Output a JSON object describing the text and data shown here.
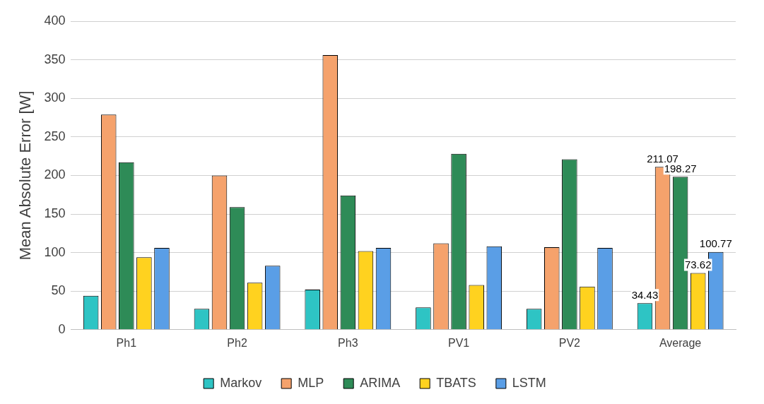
{
  "chart_data": {
    "type": "bar",
    "ylabel": "Mean Absolute Error [W]",
    "categories": [
      "Ph1",
      "Ph2",
      "Ph3",
      "PV1",
      "PV2",
      "Average"
    ],
    "ylim": [
      0,
      400
    ],
    "yticks": [
      0,
      50,
      100,
      150,
      200,
      250,
      300,
      350,
      400
    ],
    "grid": "y",
    "legend": "bottom",
    "series": [
      {
        "name": "Markov",
        "color": "#2ec4c4",
        "values": [
          44,
          27,
          52,
          29,
          27,
          34.43
        ],
        "value_labels": [
          null,
          null,
          null,
          null,
          null,
          "34.43"
        ]
      },
      {
        "name": "MLP",
        "color": "#f5a26c",
        "values": [
          279,
          200,
          356,
          112,
          107,
          211.07
        ],
        "value_labels": [
          null,
          null,
          null,
          null,
          null,
          "211.07"
        ]
      },
      {
        "name": "ARIMA",
        "color": "#2e8b57",
        "values": [
          217,
          159,
          174,
          228,
          221,
          198.27
        ],
        "value_labels": [
          null,
          null,
          null,
          null,
          null,
          "198.27"
        ]
      },
      {
        "name": "TBATS",
        "color": "#ffd21f",
        "values": [
          94,
          61,
          102,
          58,
          56,
          73.62
        ],
        "value_labels": [
          null,
          null,
          null,
          null,
          null,
          "73.62"
        ]
      },
      {
        "name": "LSTM",
        "color": "#5a9ee6",
        "values": [
          106,
          83,
          106,
          108,
          106,
          100.77
        ],
        "value_labels": [
          null,
          null,
          null,
          null,
          null,
          "100.77"
        ]
      }
    ]
  }
}
